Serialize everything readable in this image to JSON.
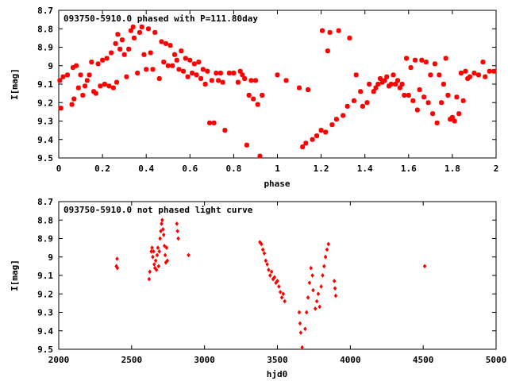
{
  "chart_data": [
    {
      "type": "scatter",
      "title": "093750-5910.0 phased with P=111.80day",
      "xlabel": "phase",
      "ylabel": "I[mag]",
      "xlim": [
        0,
        2
      ],
      "ylim": [
        9.5,
        8.7
      ],
      "y_inverted": true,
      "grid": false,
      "marker_color": "#ff0000",
      "x_ticks": [
        0,
        0.2,
        0.4,
        0.6,
        0.8,
        1,
        1.2,
        1.4,
        1.6,
        1.8,
        2
      ],
      "x_tick_labels": [
        "0",
        "0.2",
        "0.4",
        "0.6",
        "0.8",
        "1",
        "1.2",
        "1.4",
        "1.6",
        "1.8",
        "2"
      ],
      "y_ticks": [
        8.7,
        8.8,
        8.9,
        9.0,
        9.1,
        9.2,
        9.3,
        9.4,
        9.5
      ],
      "y_tick_labels": [
        "8.7",
        "8.8",
        "8.9",
        "9",
        "9.1",
        "9.2",
        "9.3",
        "9.4",
        "9.5"
      ],
      "points": [
        [
          0.005,
          9.08
        ],
        [
          0.01,
          9.23
        ],
        [
          0.02,
          9.06
        ],
        [
          0.04,
          9.05
        ],
        [
          0.06,
          9.21
        ],
        [
          0.065,
          9.01
        ],
        [
          0.07,
          9.18
        ],
        [
          0.08,
          9.0
        ],
        [
          0.09,
          9.12
        ],
        [
          0.1,
          9.05
        ],
        [
          0.11,
          9.16
        ],
        [
          0.12,
          9.11
        ],
        [
          0.13,
          9.08
        ],
        [
          0.14,
          9.05
        ],
        [
          0.15,
          8.98
        ],
        [
          0.16,
          9.14
        ],
        [
          0.17,
          9.15
        ],
        [
          0.18,
          8.99
        ],
        [
          0.19,
          9.11
        ],
        [
          0.2,
          8.97
        ],
        [
          0.21,
          9.1
        ],
        [
          0.22,
          8.96
        ],
        [
          0.23,
          9.11
        ],
        [
          0.24,
          8.93
        ],
        [
          0.25,
          9.12
        ],
        [
          0.26,
          8.88
        ],
        [
          0.265,
          9.09
        ],
        [
          0.27,
          8.83
        ],
        [
          0.28,
          8.91
        ],
        [
          0.29,
          8.86
        ],
        [
          0.3,
          8.94
        ],
        [
          0.31,
          9.06
        ],
        [
          0.32,
          8.91
        ],
        [
          0.33,
          8.81
        ],
        [
          0.34,
          8.79
        ],
        [
          0.345,
          8.85
        ],
        [
          0.36,
          9.04
        ],
        [
          0.37,
          8.82
        ],
        [
          0.38,
          8.79
        ],
        [
          0.39,
          8.94
        ],
        [
          0.4,
          9.02
        ],
        [
          0.41,
          8.8
        ],
        [
          0.42,
          8.93
        ],
        [
          0.43,
          9.02
        ],
        [
          0.44,
          8.82
        ],
        [
          0.46,
          9.07
        ],
        [
          0.47,
          8.87
        ],
        [
          0.48,
          8.98
        ],
        [
          0.49,
          8.88
        ],
        [
          0.5,
          9.0
        ],
        [
          0.51,
          8.89
        ],
        [
          0.52,
          9.0
        ],
        [
          0.53,
          8.94
        ],
        [
          0.54,
          8.97
        ],
        [
          0.55,
          9.02
        ],
        [
          0.56,
          8.92
        ],
        [
          0.57,
          9.03
        ],
        [
          0.58,
          8.96
        ],
        [
          0.59,
          9.06
        ],
        [
          0.6,
          8.97
        ],
        [
          0.61,
          9.04
        ],
        [
          0.62,
          8.99
        ],
        [
          0.63,
          9.05
        ],
        [
          0.64,
          8.98
        ],
        [
          0.65,
          9.07
        ],
        [
          0.66,
          9.02
        ],
        [
          0.67,
          9.1
        ],
        [
          0.68,
          9.03
        ],
        [
          0.69,
          9.31
        ],
        [
          0.7,
          9.08
        ],
        [
          0.71,
          9.31
        ],
        [
          0.72,
          9.04
        ],
        [
          0.73,
          9.08
        ],
        [
          0.74,
          9.04
        ],
        [
          0.75,
          9.09
        ],
        [
          0.76,
          9.35
        ],
        [
          0.78,
          9.04
        ],
        [
          0.8,
          9.04
        ],
        [
          0.82,
          9.09
        ],
        [
          0.83,
          9.03
        ],
        [
          0.84,
          9.05
        ],
        [
          0.85,
          9.07
        ],
        [
          0.86,
          9.43
        ],
        [
          0.87,
          9.16
        ],
        [
          0.88,
          9.08
        ],
        [
          0.89,
          9.18
        ],
        [
          0.9,
          9.08
        ],
        [
          0.91,
          9.21
        ],
        [
          0.92,
          9.49
        ],
        [
          0.93,
          9.16
        ],
        [
          1.0,
          9.05
        ],
        [
          1.04,
          9.08
        ],
        [
          1.1,
          9.12
        ],
        [
          1.115,
          9.44
        ],
        [
          1.13,
          9.42
        ],
        [
          1.14,
          9.13
        ],
        [
          1.16,
          9.4
        ],
        [
          1.18,
          9.38
        ],
        [
          1.2,
          9.35
        ],
        [
          1.205,
          8.81
        ],
        [
          1.22,
          9.36
        ],
        [
          1.23,
          8.92
        ],
        [
          1.24,
          8.82
        ],
        [
          1.25,
          9.32
        ],
        [
          1.27,
          9.29
        ],
        [
          1.28,
          8.81
        ],
        [
          1.3,
          9.27
        ],
        [
          1.32,
          9.22
        ],
        [
          1.33,
          8.85
        ],
        [
          1.35,
          9.19
        ],
        [
          1.36,
          9.05
        ],
        [
          1.38,
          9.14
        ],
        [
          1.39,
          9.22
        ],
        [
          1.41,
          9.2
        ],
        [
          1.42,
          9.1
        ],
        [
          1.44,
          9.14
        ],
        [
          1.45,
          9.12
        ],
        [
          1.46,
          9.1
        ],
        [
          1.47,
          9.07
        ],
        [
          1.48,
          9.09
        ],
        [
          1.49,
          9.08
        ],
        [
          1.5,
          9.06
        ],
        [
          1.51,
          9.11
        ],
        [
          1.52,
          9.1
        ],
        [
          1.53,
          9.05
        ],
        [
          1.54,
          9.1
        ],
        [
          1.55,
          9.08
        ],
        [
          1.56,
          9.12
        ],
        [
          1.57,
          9.1
        ],
        [
          1.58,
          9.16
        ],
        [
          1.59,
          8.96
        ],
        [
          1.6,
          9.16
        ],
        [
          1.61,
          9.01
        ],
        [
          1.62,
          9.19
        ],
        [
          1.63,
          8.97
        ],
        [
          1.64,
          9.24
        ],
        [
          1.65,
          9.13
        ],
        [
          1.66,
          8.97
        ],
        [
          1.67,
          9.17
        ],
        [
          1.68,
          8.98
        ],
        [
          1.69,
          9.2
        ],
        [
          1.7,
          9.05
        ],
        [
          1.71,
          9.26
        ],
        [
          1.72,
          8.99
        ],
        [
          1.73,
          9.31
        ],
        [
          1.74,
          9.05
        ],
        [
          1.75,
          9.2
        ],
        [
          1.76,
          9.1
        ],
        [
          1.77,
          8.96
        ],
        [
          1.78,
          9.16
        ],
        [
          1.79,
          9.29
        ],
        [
          1.8,
          9.28
        ],
        [
          1.81,
          9.3
        ],
        [
          1.82,
          9.17
        ],
        [
          1.83,
          9.26
        ],
        [
          1.84,
          9.04
        ],
        [
          1.85,
          9.19
        ],
        [
          1.86,
          9.03
        ],
        [
          1.87,
          9.07
        ],
        [
          1.88,
          9.06
        ],
        [
          1.9,
          9.04
        ],
        [
          1.92,
          9.05
        ],
        [
          1.94,
          8.98
        ],
        [
          1.95,
          9.06
        ],
        [
          1.97,
          9.03
        ],
        [
          1.99,
          9.03
        ]
      ]
    },
    {
      "type": "scatter",
      "title": "093750-5910.0 not phased light curve",
      "xlabel": "hjd0",
      "ylabel": "I[mag]",
      "xlim": [
        2000,
        5000
      ],
      "ylim": [
        9.5,
        8.7
      ],
      "y_inverted": true,
      "grid": false,
      "marker_color": "#ff0000",
      "x_ticks": [
        2000,
        2500,
        3000,
        3500,
        4000,
        4500,
        5000
      ],
      "x_tick_labels": [
        "2000",
        "2500",
        "3000",
        "3500",
        "4000",
        "4500",
        "5000"
      ],
      "y_ticks": [
        8.7,
        8.8,
        8.9,
        9.0,
        9.1,
        9.2,
        9.3,
        9.4,
        9.5
      ],
      "y_tick_labels": [
        "8.7",
        "8.8",
        "8.9",
        "9",
        "9.1",
        "9.2",
        "9.3",
        "9.4",
        "9.5"
      ],
      "points": [
        [
          2395,
          9.05
        ],
        [
          2400,
          9.01
        ],
        [
          2402,
          9.06
        ],
        [
          2620,
          9.12
        ],
        [
          2625,
          9.08
        ],
        [
          2635,
          8.97
        ],
        [
          2640,
          8.95
        ],
        [
          2645,
          9.0
        ],
        [
          2650,
          8.97
        ],
        [
          2655,
          9.04
        ],
        [
          2660,
          9.06
        ],
        [
          2665,
          9.02
        ],
        [
          2670,
          9.07
        ],
        [
          2675,
          8.99
        ],
        [
          2680,
          8.95
        ],
        [
          2685,
          9.05
        ],
        [
          2690,
          8.97
        ],
        [
          2695,
          8.9
        ],
        [
          2700,
          8.86
        ],
        [
          2705,
          8.82
        ],
        [
          2710,
          8.8
        ],
        [
          2715,
          8.85
        ],
        [
          2720,
          8.88
        ],
        [
          2725,
          8.94
        ],
        [
          2730,
          8.99
        ],
        [
          2735,
          9.03
        ],
        [
          2740,
          8.95
        ],
        [
          2745,
          9.02
        ],
        [
          2810,
          8.82
        ],
        [
          2815,
          8.86
        ],
        [
          2820,
          8.9
        ],
        [
          2890,
          8.99
        ],
        [
          3380,
          8.92
        ],
        [
          3390,
          8.93
        ],
        [
          3400,
          8.96
        ],
        [
          3410,
          8.98
        ],
        [
          3420,
          9.02
        ],
        [
          3430,
          9.04
        ],
        [
          3440,
          9.07
        ],
        [
          3450,
          9.1
        ],
        [
          3460,
          9.08
        ],
        [
          3470,
          9.12
        ],
        [
          3480,
          9.11
        ],
        [
          3490,
          9.14
        ],
        [
          3500,
          9.13
        ],
        [
          3510,
          9.16
        ],
        [
          3520,
          9.19
        ],
        [
          3530,
          9.22
        ],
        [
          3540,
          9.2
        ],
        [
          3550,
          9.24
        ],
        [
          3650,
          9.3
        ],
        [
          3655,
          9.36
        ],
        [
          3660,
          9.41
        ],
        [
          3670,
          9.49
        ],
        [
          3690,
          9.39
        ],
        [
          3700,
          9.3
        ],
        [
          3710,
          9.22
        ],
        [
          3720,
          9.14
        ],
        [
          3730,
          9.06
        ],
        [
          3740,
          9.1
        ],
        [
          3745,
          9.18
        ],
        [
          3760,
          9.28
        ],
        [
          3770,
          9.24
        ],
        [
          3780,
          9.2
        ],
        [
          3790,
          9.27
        ],
        [
          3800,
          9.16
        ],
        [
          3810,
          9.1
        ],
        [
          3820,
          9.05
        ],
        [
          3830,
          9.0
        ],
        [
          3840,
          8.96
        ],
        [
          3850,
          8.93
        ],
        [
          3890,
          9.13
        ],
        [
          3895,
          9.17
        ],
        [
          3900,
          9.21
        ],
        [
          4510,
          9.05
        ]
      ]
    }
  ]
}
